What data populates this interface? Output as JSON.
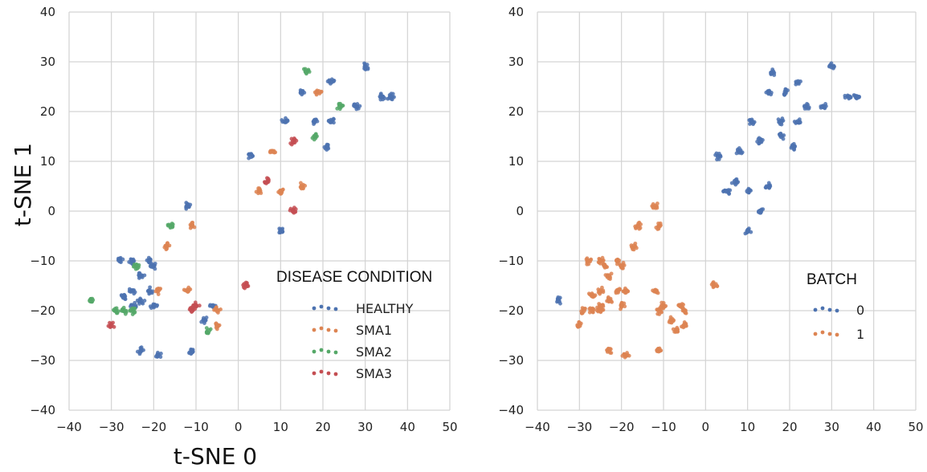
{
  "chart_data": [
    {
      "type": "scatter",
      "title": "",
      "xlabel": "t-SNE 0",
      "ylabel": "t-SNE 1",
      "xlim": [
        -40,
        50
      ],
      "ylim": [
        -40,
        40
      ],
      "xticks": [
        "−40",
        "−30",
        "−20",
        "−10",
        "0",
        "10",
        "20",
        "30",
        "40",
        "50"
      ],
      "yticks": [
        "40",
        "30",
        "20",
        "10",
        "0",
        "−10",
        "−20",
        "−30",
        "−40"
      ],
      "grid": true,
      "legend": {
        "title": "DISEASE CONDITION",
        "placement": "lower-right"
      },
      "series": [
        {
          "name": "HEALTHY",
          "color": "#4c72b0",
          "points": [
            [
              30,
              29
            ],
            [
              36,
              23
            ],
            [
              34,
              23
            ],
            [
              28,
              21
            ],
            [
              22,
              26
            ],
            [
              15,
              24
            ],
            [
              22,
              18
            ],
            [
              18,
              18
            ],
            [
              21,
              13
            ],
            [
              11,
              18
            ],
            [
              3,
              11
            ],
            [
              10,
              -4
            ],
            [
              -12,
              1
            ],
            [
              -28,
              -10
            ],
            [
              -25,
              -10
            ],
            [
              -21,
              -10
            ],
            [
              -20,
              -11
            ],
            [
              -23,
              -13
            ],
            [
              -21,
              -16
            ],
            [
              -25,
              -16
            ],
            [
              -25,
              -19
            ],
            [
              -23,
              -18
            ],
            [
              -20,
              -19
            ],
            [
              -23,
              -28
            ],
            [
              -19,
              -29
            ],
            [
              -11,
              -28
            ],
            [
              -8,
              -22
            ],
            [
              -6,
              -19
            ],
            [
              -27,
              -17
            ]
          ]
        },
        {
          "name": "SMA1",
          "color": "#dd8452",
          "points": [
            [
              19,
              24
            ],
            [
              8,
              12
            ],
            [
              5,
              4
            ],
            [
              10,
              4
            ],
            [
              15,
              5
            ],
            [
              -11,
              -3
            ],
            [
              -17,
              -7
            ],
            [
              -19,
              -16
            ],
            [
              -12,
              -16
            ],
            [
              -5,
              -20
            ],
            [
              -5,
              -23
            ]
          ]
        },
        {
          "name": "SMA2",
          "color": "#55a868",
          "points": [
            [
              16,
              28
            ],
            [
              24,
              21
            ],
            [
              18,
              15
            ],
            [
              -16,
              -3
            ],
            [
              -35,
              -18
            ],
            [
              -29,
              -20
            ],
            [
              -27,
              -20
            ],
            [
              -25,
              -20
            ],
            [
              -24,
              -11
            ],
            [
              -7,
              -24
            ]
          ]
        },
        {
          "name": "SMA3",
          "color": "#c44e52",
          "points": [
            [
              13,
              14
            ],
            [
              7,
              6
            ],
            [
              13,
              0
            ],
            [
              2,
              -15
            ],
            [
              -30,
              -23
            ],
            [
              -10,
              -19
            ],
            [
              -11,
              -20
            ]
          ]
        }
      ]
    },
    {
      "type": "scatter",
      "title": "",
      "xlabel": "",
      "ylabel": "",
      "xlim": [
        -40,
        50
      ],
      "ylim": [
        -40,
        40
      ],
      "xticks": [
        "−40",
        "−30",
        "−20",
        "−10",
        "0",
        "10",
        "20",
        "30",
        "40",
        "50"
      ],
      "yticks": [
        "40",
        "30",
        "20",
        "10",
        "0",
        "−10",
        "−20",
        "−30",
        "−40"
      ],
      "grid": true,
      "legend": {
        "title": "BATCH",
        "placement": "lower-right"
      },
      "series": [
        {
          "name": "0",
          "color": "#4c72b0",
          "points": [
            [
              30,
              29
            ],
            [
              36,
              23
            ],
            [
              34,
              23
            ],
            [
              28,
              21
            ],
            [
              22,
              26
            ],
            [
              15,
              24
            ],
            [
              19,
              24
            ],
            [
              16,
              28
            ],
            [
              22,
              18
            ],
            [
              18,
              18
            ],
            [
              24,
              21
            ],
            [
              21,
              13
            ],
            [
              18,
              15
            ],
            [
              11,
              18
            ],
            [
              13,
              14
            ],
            [
              8,
              12
            ],
            [
              3,
              11
            ],
            [
              7,
              6
            ],
            [
              5,
              4
            ],
            [
              10,
              4
            ],
            [
              15,
              5
            ],
            [
              13,
              0
            ],
            [
              10,
              -4
            ],
            [
              -35,
              -18
            ]
          ]
        },
        {
          "name": "1",
          "color": "#dd8452",
          "points": [
            [
              -12,
              1
            ],
            [
              -11,
              -3
            ],
            [
              -16,
              -3
            ],
            [
              -17,
              -7
            ],
            [
              2,
              -15
            ],
            [
              -28,
              -10
            ],
            [
              -25,
              -10
            ],
            [
              -24,
              -11
            ],
            [
              -21,
              -10
            ],
            [
              -20,
              -11
            ],
            [
              -23,
              -13
            ],
            [
              -21,
              -16
            ],
            [
              -25,
              -16
            ],
            [
              -19,
              -16
            ],
            [
              -12,
              -16
            ],
            [
              -27,
              -17
            ],
            [
              -25,
              -19
            ],
            [
              -23,
              -18
            ],
            [
              -20,
              -19
            ],
            [
              -29,
              -20
            ],
            [
              -27,
              -20
            ],
            [
              -25,
              -20
            ],
            [
              -10,
              -19
            ],
            [
              -11,
              -20
            ],
            [
              -6,
              -19
            ],
            [
              -5,
              -20
            ],
            [
              -8,
              -22
            ],
            [
              -5,
              -23
            ],
            [
              -7,
              -24
            ],
            [
              -30,
              -23
            ],
            [
              -23,
              -28
            ],
            [
              -19,
              -29
            ],
            [
              -11,
              -28
            ]
          ]
        }
      ]
    }
  ]
}
